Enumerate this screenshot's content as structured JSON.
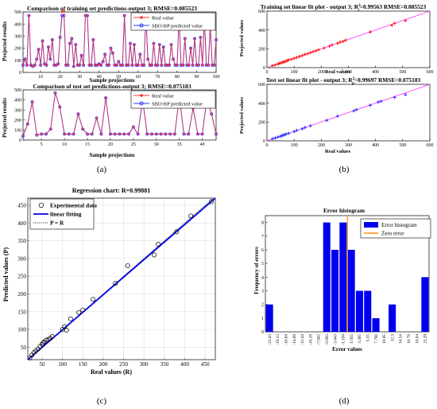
{
  "panel_labels": [
    "(a)",
    "(b)",
    "(c)",
    "(d)"
  ],
  "chart_data": [
    {
      "panel": "(a) top",
      "type": "line",
      "title": "Comparison of training set predictions-output 3; RMSE=0.085523",
      "xlabel": "Sample projections",
      "ylabel": "Projected results",
      "xlim": [
        1,
        100
      ],
      "ylim": [
        0,
        500
      ],
      "xticks": [
        10,
        20,
        30,
        40,
        50,
        60,
        70,
        80,
        90,
        100
      ],
      "yticks": [
        0,
        100,
        200,
        300,
        400,
        500
      ],
      "legend_position": "top-right",
      "series": [
        {
          "name": "Real value",
          "color": "#ff3030",
          "values": [
            60,
            110,
            60,
            470,
            60,
            50,
            60,
            110,
            190,
            60,
            260,
            70,
            60,
            210,
            110,
            270,
            60,
            60,
            70,
            290,
            510,
            510,
            60,
            60,
            240,
            280,
            50,
            230,
            60,
            60,
            140,
            60,
            470,
            470,
            60,
            60,
            270,
            60,
            60,
            70,
            60,
            90,
            150,
            60,
            60,
            200,
            160,
            60,
            60,
            90,
            60,
            60,
            470,
            60,
            60,
            240,
            60,
            230,
            60,
            60,
            150,
            60,
            60,
            470,
            110,
            60,
            60,
            240,
            60,
            60,
            230,
            60,
            210,
            60,
            60,
            60,
            230,
            110,
            60,
            60,
            460,
            60,
            60,
            280,
            60,
            60,
            200,
            60,
            280,
            60,
            60,
            290,
            60,
            460,
            60,
            60,
            380,
            60,
            60,
            270
          ]
        },
        {
          "name": "SBO-BP predicted value",
          "color": "#3030ff",
          "values": [
            60,
            110,
            60,
            470,
            60,
            50,
            60,
            110,
            190,
            60,
            260,
            70,
            60,
            210,
            110,
            270,
            60,
            60,
            70,
            290,
            470,
            470,
            60,
            60,
            240,
            280,
            50,
            230,
            60,
            60,
            140,
            60,
            470,
            470,
            60,
            60,
            270,
            60,
            60,
            70,
            60,
            90,
            150,
            60,
            60,
            200,
            160,
            60,
            60,
            90,
            60,
            60,
            470,
            60,
            60,
            240,
            60,
            230,
            60,
            60,
            150,
            60,
            60,
            470,
            110,
            60,
            60,
            240,
            60,
            60,
            230,
            60,
            210,
            60,
            60,
            60,
            230,
            110,
            60,
            60,
            460,
            60,
            60,
            280,
            60,
            60,
            200,
            60,
            280,
            60,
            60,
            290,
            60,
            460,
            60,
            60,
            380,
            60,
            60,
            270
          ]
        }
      ]
    },
    {
      "panel": "(a) bottom",
      "type": "line",
      "title": "Comparison of test set predictions-output 3; RMSE=0.075183",
      "xlabel": "Sample projections",
      "ylabel": "Projected results",
      "xlim": [
        1,
        43
      ],
      "ylim": [
        0,
        500
      ],
      "xticks": [
        5,
        10,
        15,
        20,
        25,
        30,
        35,
        40
      ],
      "yticks": [
        0,
        100,
        200,
        300,
        400,
        500
      ],
      "legend_position": "top-right",
      "series": [
        {
          "name": "Real value",
          "color": "#ff3030",
          "values": [
            40,
            160,
            380,
            50,
            60,
            60,
            110,
            470,
            330,
            60,
            60,
            60,
            260,
            110,
            60,
            60,
            220,
            60,
            420,
            60,
            60,
            60,
            60,
            60,
            130,
            60,
            410,
            60,
            60,
            60,
            60,
            60,
            60,
            60,
            430,
            60,
            60,
            320,
            60,
            60,
            420,
            260,
            60
          ]
        },
        {
          "name": "SBO-BP predicted value",
          "color": "#3030ff",
          "values": [
            40,
            160,
            380,
            50,
            60,
            60,
            110,
            470,
            330,
            60,
            60,
            60,
            260,
            110,
            60,
            60,
            220,
            60,
            420,
            60,
            60,
            60,
            60,
            60,
            130,
            60,
            410,
            60,
            60,
            60,
            60,
            60,
            60,
            60,
            430,
            60,
            60,
            320,
            60,
            60,
            420,
            260,
            60
          ]
        }
      ]
    },
    {
      "panel": "(b) top",
      "type": "scatter",
      "title": "Training set linear fit plot - output 3; R",
      "title_sup": "2",
      "title_sub": "c",
      "title_rest": "=0.99563  RMSE=0.085523",
      "xlabel": "Real values",
      "ylabel": "Projected values",
      "xlim": [
        0,
        600
      ],
      "ylim": [
        0,
        600
      ],
      "xticks": [
        0,
        100,
        200,
        300,
        400,
        500,
        600
      ],
      "yticks": [
        0,
        200,
        400,
        600
      ],
      "point_color": "#ff1a1a",
      "line_color": "#ff33ff",
      "x": [
        20,
        30,
        40,
        45,
        50,
        55,
        60,
        65,
        70,
        75,
        80,
        90,
        100,
        110,
        120,
        130,
        140,
        150,
        160,
        170,
        180,
        190,
        210,
        230,
        240,
        260,
        270,
        280,
        290,
        380,
        460,
        470,
        510
      ],
      "y": [
        20,
        28,
        38,
        45,
        48,
        55,
        58,
        62,
        70,
        74,
        82,
        88,
        98,
        108,
        118,
        128,
        140,
        148,
        158,
        170,
        178,
        190,
        208,
        228,
        242,
        258,
        272,
        278,
        292,
        378,
        450,
        470,
        500
      ]
    },
    {
      "panel": "(b) bottom",
      "type": "scatter",
      "title": "Test set linear fit plot - output 3; R",
      "title_sup": "2",
      "title_sub": "p",
      "title_rest": "=0.99697  RMSE=0.075183",
      "xlabel": "Real values",
      "ylabel": "Projected values",
      "xlim": [
        0,
        600
      ],
      "ylim": [
        0,
        600
      ],
      "xticks": [
        0,
        100,
        200,
        300,
        400,
        500,
        600
      ],
      "yticks": [
        0,
        200,
        400,
        600
      ],
      "point_color": "#3030ff",
      "line_color": "#ff33ff",
      "x": [
        20,
        30,
        40,
        50,
        55,
        60,
        65,
        70,
        80,
        100,
        110,
        130,
        140,
        160,
        220,
        260,
        320,
        330,
        380,
        410,
        420,
        470,
        510
      ],
      "y": [
        22,
        30,
        40,
        48,
        56,
        60,
        64,
        72,
        80,
        98,
        112,
        128,
        142,
        160,
        218,
        262,
        318,
        332,
        378,
        412,
        420,
        462,
        490
      ]
    },
    {
      "panel": "(c)",
      "type": "scatter",
      "title": "Regression chart: R=0.99881",
      "xlabel": "Real values (R)",
      "ylabel": "Predicted values (P)",
      "xlim": [
        15,
        475
      ],
      "ylim": [
        15,
        470
      ],
      "xticks": [
        50,
        100,
        150,
        200,
        250,
        300,
        350,
        400,
        450
      ],
      "yticks": [
        50,
        100,
        150,
        200,
        250,
        300,
        350,
        400,
        450
      ],
      "legend_position": "top-left",
      "legend": [
        "Experimental data",
        "linear fitting",
        "P = R"
      ],
      "x": [
        20,
        25,
        30,
        35,
        40,
        45,
        50,
        52,
        55,
        60,
        65,
        70,
        75,
        100,
        105,
        110,
        120,
        140,
        150,
        175,
        230,
        260,
        325,
        335,
        380,
        415,
        465
      ],
      "y": [
        20,
        28,
        35,
        40,
        45,
        52,
        58,
        62,
        65,
        70,
        72,
        75,
        80,
        100,
        108,
        98,
        130,
        148,
        155,
        185,
        230,
        280,
        310,
        340,
        375,
        420,
        460
      ]
    },
    {
      "panel": "(d)",
      "type": "bar",
      "title": "Error histogram",
      "xlabel": "Error values",
      "ylabel": "Frequency of errors",
      "ylim": [
        0,
        8.5
      ],
      "yticks": [
        0,
        1,
        2,
        3,
        4,
        5,
        6,
        7,
        8
      ],
      "categories": [
        "-21.43",
        "-19.13",
        "-16.84",
        "-14.69",
        "-12.44",
        "-10.19",
        "-7.942",
        "-5.693",
        "-3.443",
        "-1.194",
        "1.055",
        "3.305",
        "5.55",
        "7.796",
        "10.05",
        "12.3",
        "14.54",
        "16.79",
        "19.04",
        "21.29"
      ],
      "values": [
        2,
        0,
        0,
        0,
        0,
        0,
        0,
        8,
        6,
        8,
        6,
        3,
        3,
        1,
        0,
        2,
        0,
        0,
        0,
        4
      ],
      "bar_color": "#0000ee",
      "zero_line_color": "#ff8c00",
      "legend_position": "top-right",
      "legend": [
        "Error histogram",
        "Zero error"
      ]
    }
  ]
}
